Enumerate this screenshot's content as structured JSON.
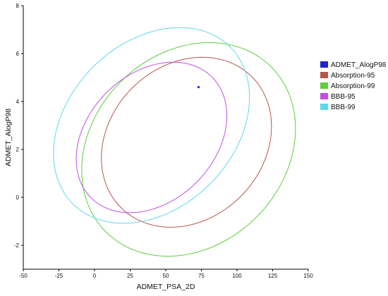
{
  "chart_data": {
    "type": "scatter",
    "title": "",
    "xlabel": "ADMET_PSA_2D",
    "ylabel": "ADMET_AlogP98",
    "xlim": [
      -50,
      150
    ],
    "ylim": [
      -3,
      8
    ],
    "x_ticks": [
      "-50",
      "-25",
      "0",
      "25",
      "50",
      "75",
      "100",
      "125",
      "150"
    ],
    "y_ticks": [
      "-2",
      "0",
      "2",
      "4",
      "6",
      "8"
    ],
    "grid": false,
    "legend_position": "right",
    "series": [
      {
        "name": "ADMET_AlogP98",
        "kind": "points",
        "color": "#1f22d6",
        "points": [
          [
            73,
            4.6
          ]
        ]
      },
      {
        "name": "Absorption-95",
        "kind": "ellipse",
        "color": "#b4574c",
        "cx": 64.5,
        "cy": 2.3,
        "rx": 65,
        "ry": 3.2,
        "angle_deg": 45
      },
      {
        "name": "Absorption-99",
        "kind": "ellipse",
        "color": "#5ccf3d",
        "cx": 66,
        "cy": 2.0,
        "rx": 82,
        "ry": 4.0,
        "angle_deg": 45
      },
      {
        "name": "BBB-95",
        "kind": "ellipse",
        "color": "#c14fe0",
        "cx": 40,
        "cy": 2.5,
        "rx": 60,
        "ry": 2.65,
        "angle_deg": 45
      },
      {
        "name": "BBB-99",
        "kind": "ellipse",
        "color": "#5fd7ea",
        "cx": 40,
        "cy": 3.0,
        "rx": 78,
        "ry": 3.45,
        "angle_deg": 45
      }
    ]
  }
}
